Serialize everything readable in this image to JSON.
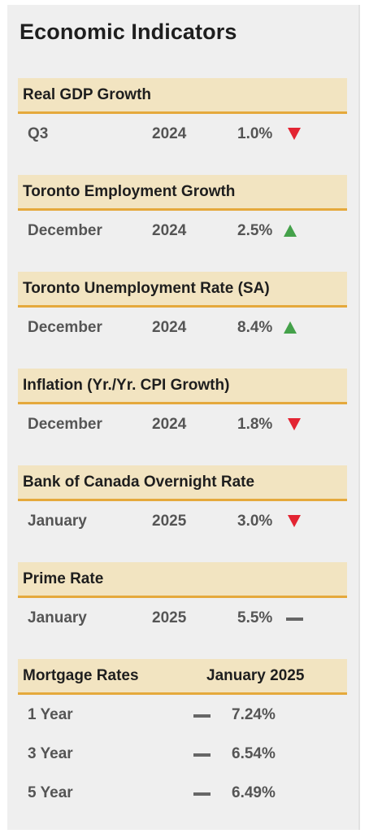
{
  "page": {
    "title": "Economic Indicators"
  },
  "colors": {
    "header_bg": "#f2e4c1",
    "header_rule": "#e5a93c",
    "down": "#e32432",
    "up": "#44a14a",
    "flat": "#666666"
  },
  "indicators": [
    {
      "name": "Real GDP Growth",
      "period": "Q3",
      "year": "2024",
      "value": "1.0%",
      "trend": "down"
    },
    {
      "name": "Toronto Employment Growth",
      "period": "December",
      "year": "2024",
      "value": "2.5%",
      "trend": "up"
    },
    {
      "name": "Toronto Unemployment Rate (SA)",
      "period": "December",
      "year": "2024",
      "value": "8.4%",
      "trend": "up"
    },
    {
      "name": "Inflation (Yr./Yr. CPI Growth)",
      "period": "December",
      "year": "2024",
      "value": "1.8%",
      "trend": "down"
    },
    {
      "name": "Bank of Canada Overnight Rate",
      "period": "January",
      "year": "2025",
      "value": "3.0%",
      "trend": "down"
    },
    {
      "name": "Prime Rate",
      "period": "January",
      "year": "2025",
      "value": "5.5%",
      "trend": "flat"
    }
  ],
  "mortgage": {
    "title": "Mortgage Rates",
    "date": "January 2025",
    "rows": [
      {
        "term": "1 Year",
        "trend": "flat",
        "rate": "7.24%"
      },
      {
        "term": "3 Year",
        "trend": "flat",
        "rate": "6.54%"
      },
      {
        "term": "5 Year",
        "trend": "flat",
        "rate": "6.49%"
      }
    ]
  }
}
